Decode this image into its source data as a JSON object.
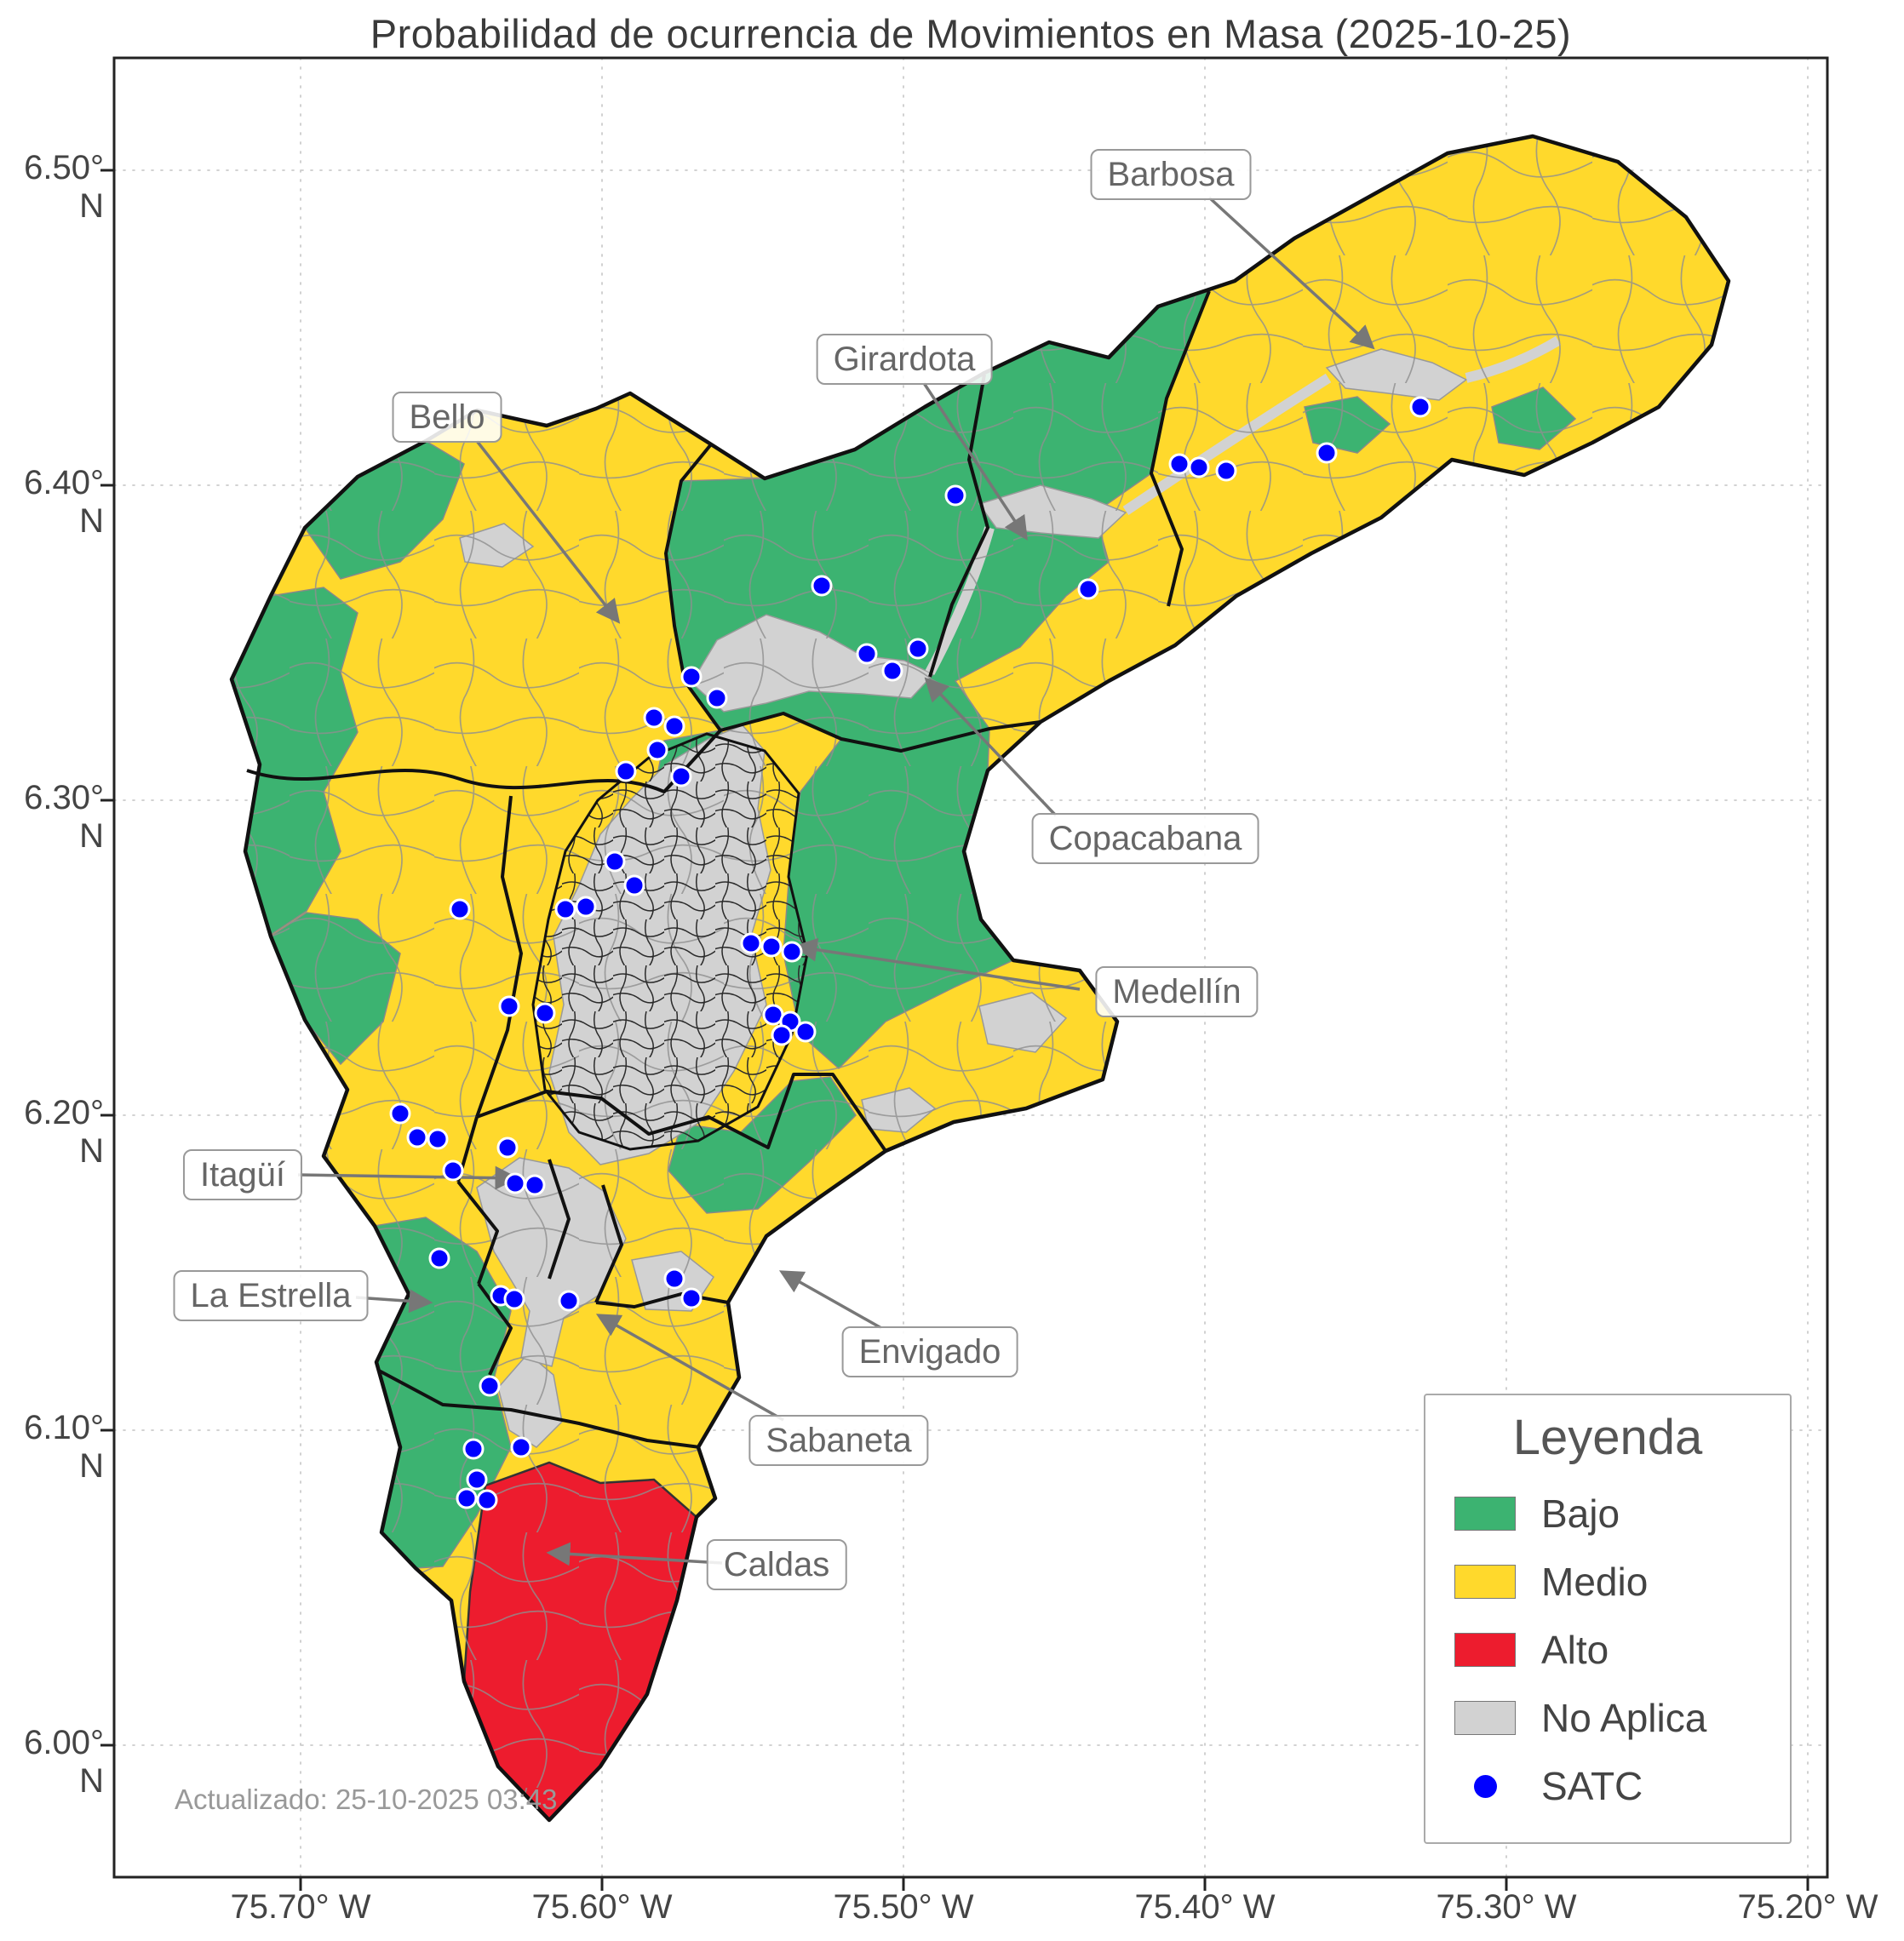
{
  "title": "Probabilidad de ocurrencia de Movimientos en Masa (2025-10-25)",
  "updated": "Actualizado: 25-10-2025 03:43",
  "axis": {
    "lat": [
      "6.50° N",
      "6.40° N",
      "6.30° N",
      "6.20° N",
      "6.10° N",
      "6.00° N"
    ],
    "lon": [
      "75.70° W",
      "75.60° W",
      "75.50° W",
      "75.40° W",
      "75.30° W",
      "75.20° W"
    ]
  },
  "legend": {
    "title": "Leyenda",
    "items": [
      {
        "label": "Bajo"
      },
      {
        "label": "Medio"
      },
      {
        "label": "Alto"
      },
      {
        "label": "No Aplica"
      },
      {
        "label": "SATC"
      }
    ]
  },
  "colors": {
    "bajo": "#3CB371",
    "medio": "#FFD92C",
    "alto": "#ED1C2E",
    "no_aplica": "#D2D2D2",
    "satc": "#0000FF",
    "border": "#111111",
    "annotation": "#777777"
  },
  "callouts": {
    "barbosa": "Barbosa",
    "girardota": "Girardota",
    "bello": "Bello",
    "copacabana": "Copacabana",
    "medellin": "Medellín",
    "itagui": "Itagüí",
    "la_estrella": "La Estrella",
    "envigado": "Envigado",
    "sabaneta": "Sabaneta",
    "caldas": "Caldas"
  },
  "satc": {
    "radius": 11,
    "points": [
      [
        1122,
        582
      ],
      [
        1278,
        692
      ],
      [
        965,
        688
      ],
      [
        1385,
        545
      ],
      [
        1408,
        549
      ],
      [
        1440,
        553
      ],
      [
        1558,
        532
      ],
      [
        1668,
        478
      ],
      [
        1018,
        768
      ],
      [
        1048,
        788
      ],
      [
        1078,
        762
      ],
      [
        812,
        795
      ],
      [
        842,
        820
      ],
      [
        768,
        843
      ],
      [
        792,
        853
      ],
      [
        772,
        881
      ],
      [
        800,
        912
      ],
      [
        735,
        906
      ],
      [
        722,
        1012
      ],
      [
        745,
        1040
      ],
      [
        688,
        1065
      ],
      [
        664,
        1068
      ],
      [
        540,
        1068
      ],
      [
        882,
        1108
      ],
      [
        906,
        1112
      ],
      [
        930,
        1118
      ],
      [
        908,
        1192
      ],
      [
        928,
        1200
      ],
      [
        946,
        1212
      ],
      [
        918,
        1216
      ],
      [
        598,
        1182
      ],
      [
        640,
        1190
      ],
      [
        470,
        1308
      ],
      [
        490,
        1336
      ],
      [
        514,
        1338
      ],
      [
        532,
        1375
      ],
      [
        596,
        1348
      ],
      [
        605,
        1390
      ],
      [
        628,
        1392
      ],
      [
        516,
        1478
      ],
      [
        588,
        1522
      ],
      [
        604,
        1526
      ],
      [
        668,
        1528
      ],
      [
        792,
        1502
      ],
      [
        812,
        1525
      ],
      [
        575,
        1628
      ],
      [
        556,
        1702
      ],
      [
        612,
        1700
      ],
      [
        560,
        1738
      ],
      [
        572,
        1762
      ],
      [
        548,
        1760
      ]
    ]
  }
}
